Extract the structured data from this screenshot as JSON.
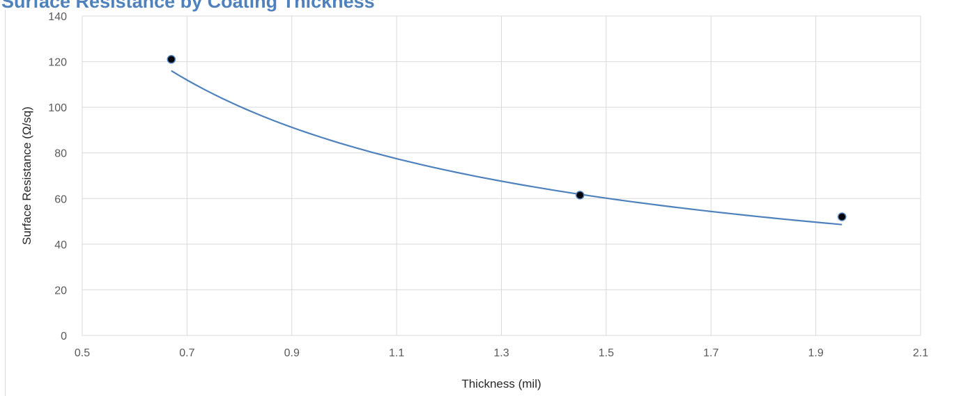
{
  "chart_data": {
    "type": "scatter",
    "title": "Surface Resistance by Coating Thickness",
    "xlabel": "Thickness (mil)",
    "ylabel": "Surface Resistance (Ω/sq)",
    "xlim": [
      0.5,
      2.1
    ],
    "ylim": [
      0,
      140
    ],
    "x_ticks": [
      "0.5",
      "0.7",
      "0.9",
      "1.1",
      "1.3",
      "1.5",
      "1.7",
      "1.9",
      "2.1"
    ],
    "y_ticks": [
      "0",
      "20",
      "40",
      "60",
      "80",
      "100",
      "120",
      "140"
    ],
    "grid": true,
    "legend": "none",
    "series": [
      {
        "points": [
          {
            "x": 0.67,
            "y": 121
          },
          {
            "x": 1.45,
            "y": 61.5
          },
          {
            "x": 1.95,
            "y": 52
          }
        ],
        "marker_color": "#000000",
        "marker_edge": "#4F81BD"
      }
    ],
    "trendline": {
      "type": "power",
      "x_range": [
        0.67,
        1.95
      ],
      "points": [
        {
          "x": 0.67,
          "y": 116
        },
        {
          "x": 0.9,
          "y": 99.3
        },
        {
          "x": 1.1,
          "y": 86.6
        },
        {
          "x": 1.3,
          "y": 75.4
        },
        {
          "x": 1.5,
          "y": 66.6
        },
        {
          "x": 1.7,
          "y": 57.7
        },
        {
          "x": 1.95,
          "y": 48.6
        }
      ],
      "color": "#4F81BD"
    },
    "colors": {
      "title": "#4F81BD",
      "grid": "#d9d9d9",
      "tick_text": "#595959"
    }
  }
}
